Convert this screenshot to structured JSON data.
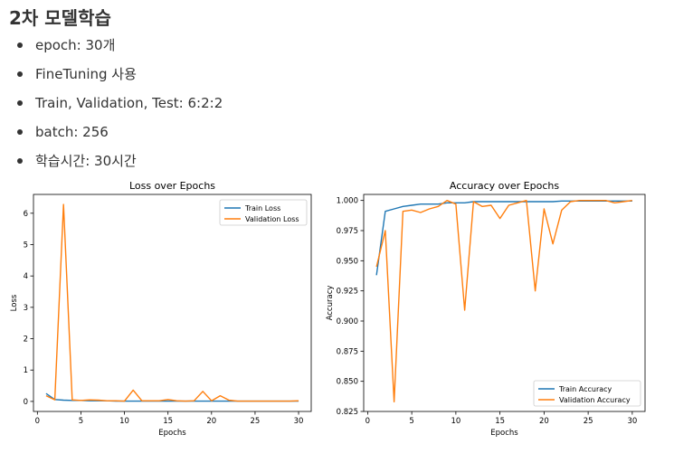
{
  "heading": "2차 모델학습",
  "bullets": [
    "epoch: 30개",
    "FineTuning 사용",
    "Train, Validation, Test: 6:2:2",
    "batch: 256",
    "학습시간:  30시간"
  ],
  "chart_data": [
    {
      "type": "line",
      "title": "Loss over Epochs",
      "xlabel": "Epochs",
      "ylabel": "Loss",
      "xlim": [
        -0.45,
        31.45
      ],
      "ylim": [
        -0.32,
        6.6
      ],
      "xticks": [
        0,
        5,
        10,
        15,
        20,
        25,
        30
      ],
      "yticks": [
        0,
        1,
        2,
        3,
        4,
        5,
        6
      ],
      "legend": "top-right",
      "grid": false,
      "x": [
        1,
        2,
        3,
        4,
        5,
        6,
        7,
        8,
        9,
        10,
        11,
        12,
        13,
        14,
        15,
        16,
        17,
        18,
        19,
        20,
        21,
        22,
        23,
        24,
        25,
        26,
        27,
        28,
        29,
        30
      ],
      "series": [
        {
          "name": "Train Loss",
          "color": "#1f77b4",
          "values": [
            0.25,
            0.06,
            0.04,
            0.03,
            0.03,
            0.02,
            0.02,
            0.02,
            0.01,
            0.01,
            0.01,
            0.01,
            0.01,
            0.01,
            0.01,
            0.01,
            0.01,
            0.01,
            0.01,
            0.01,
            0.01,
            0.01,
            0.01,
            0.01,
            0.01,
            0.01,
            0.01,
            0.01,
            0.01,
            0.01
          ]
        },
        {
          "name": "Validation Loss",
          "color": "#ff7f0e",
          "values": [
            0.18,
            0.05,
            6.28,
            0.05,
            0.03,
            0.05,
            0.04,
            0.02,
            0.02,
            0.01,
            0.36,
            0.02,
            0.02,
            0.02,
            0.06,
            0.02,
            0.01,
            0.02,
            0.32,
            0.02,
            0.18,
            0.04,
            0.01,
            0.01,
            0.01,
            0.01,
            0.01,
            0.01,
            0.01,
            0.02
          ]
        }
      ]
    },
    {
      "type": "line",
      "title": "Accuracy over Epochs",
      "xlabel": "Epochs",
      "ylabel": "Accuracy",
      "xlim": [
        -0.45,
        31.45
      ],
      "ylim": [
        0.825,
        1.005
      ],
      "xticks": [
        0,
        5,
        10,
        15,
        20,
        25,
        30
      ],
      "yticks": [
        0.825,
        0.85,
        0.875,
        0.9,
        0.925,
        0.95,
        0.975,
        1.0
      ],
      "legend": "bottom-right",
      "grid": false,
      "x": [
        1,
        2,
        3,
        4,
        5,
        6,
        7,
        8,
        9,
        10,
        11,
        12,
        13,
        14,
        15,
        16,
        17,
        18,
        19,
        20,
        21,
        22,
        23,
        24,
        25,
        26,
        27,
        28,
        29,
        30
      ],
      "series": [
        {
          "name": "Train Accuracy",
          "color": "#1f77b4",
          "values": [
            0.938,
            0.991,
            0.993,
            0.995,
            0.996,
            0.997,
            0.997,
            0.997,
            0.998,
            0.998,
            0.998,
            0.999,
            0.999,
            0.999,
            0.999,
            0.999,
            0.999,
            0.999,
            0.999,
            0.999,
            0.999,
            0.9995,
            0.9995,
            0.9995,
            0.9995,
            0.9995,
            0.9995,
            0.9995,
            0.9995,
            0.9995
          ]
        },
        {
          "name": "Validation Accuracy",
          "color": "#ff7f0e",
          "values": [
            0.945,
            0.975,
            0.833,
            0.991,
            0.992,
            0.99,
            0.993,
            0.995,
            1.0,
            0.997,
            0.909,
            0.999,
            0.995,
            0.996,
            0.985,
            0.996,
            0.998,
            1.0,
            0.925,
            0.993,
            0.964,
            0.992,
            0.999,
            1.0,
            1.0,
            1.0,
            1.0,
            0.998,
            0.999,
            1.0
          ]
        }
      ]
    }
  ]
}
